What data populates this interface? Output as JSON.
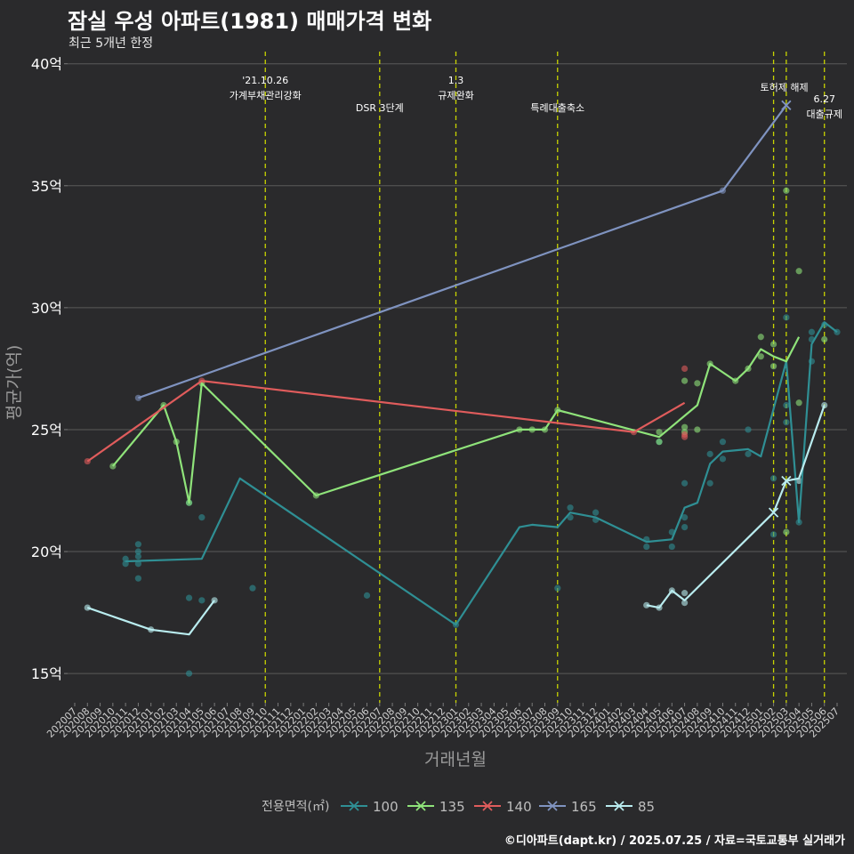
{
  "header": {
    "title": "잠실 우성 아파트(1981) 매매가격 변화",
    "subtitle": "최근 5개년 한정"
  },
  "caption": "©디아파트(dapt.kr) / 2025.07.25 / 자료=국토교통부 실거래가",
  "colors": {
    "background": "#2a2a2c",
    "grid": "#5a5a5a",
    "event_line": "#c8d400",
    "s100": "#2f8f94",
    "s135": "#8fe37a",
    "s140": "#e05c5c",
    "s165": "#7f93c0",
    "s85": "#b9ecef"
  },
  "chart_data": {
    "type": "line",
    "title": "잠실 우성 아파트(1981) 매매가격 변화",
    "subtitle": "최근 5개년 한정",
    "xlabel": "거래년월",
    "ylabel": "평균가(억)",
    "ylim": [
      13.8,
      40.5
    ],
    "yticks": [
      15,
      20,
      25,
      30,
      35,
      40
    ],
    "ytick_labels": [
      "15억",
      "20억",
      "25억",
      "30억",
      "35억",
      "40억"
    ],
    "grid": true,
    "categories": [
      "202007",
      "202008",
      "202009",
      "202010",
      "202011",
      "202012",
      "202101",
      "202102",
      "202103",
      "202104",
      "202105",
      "202106",
      "202107",
      "202108",
      "202109",
      "202110",
      "202111",
      "202112",
      "202201",
      "202202",
      "202203",
      "202204",
      "202205",
      "202206",
      "202207",
      "202208",
      "202209",
      "202210",
      "202211",
      "202212",
      "202301",
      "202302",
      "202303",
      "202304",
      "202305",
      "202306",
      "202307",
      "202308",
      "202309",
      "202310",
      "202311",
      "202312",
      "202401",
      "202402",
      "202403",
      "202404",
      "202405",
      "202406",
      "202407",
      "202408",
      "202409",
      "202410",
      "202411",
      "202412",
      "202501",
      "202502",
      "202503",
      "202504",
      "202505",
      "202506",
      "202507"
    ],
    "events": [
      {
        "month": "202110",
        "line1": "'21.10.26",
        "line2": "가계부채관리강화"
      },
      {
        "month": "202207",
        "line1": "",
        "line2": "DSR 3단계"
      },
      {
        "month": "202301",
        "line1": "1.3",
        "line2": "규제완화"
      },
      {
        "month": "202309",
        "line1": "",
        "line2": "특례대출축소"
      },
      {
        "month": "202502",
        "line1": "",
        "line2": "토허제 해제"
      },
      {
        "month": "202503",
        "line1": "",
        "line2": ""
      },
      {
        "month": "202506",
        "line1": "6.27",
        "line2": "대출규제"
      }
    ],
    "legend": {
      "title": "전용면적(㎡)",
      "position": "bottom",
      "entries": [
        "100",
        "135",
        "140",
        "165",
        "85"
      ]
    },
    "series": [
      {
        "name": "100",
        "color": "#2f8f94",
        "line": [
          [
            "202011",
            19.6
          ],
          [
            "202105",
            19.7
          ],
          [
            "202108",
            23.0
          ],
          [
            "202301",
            17.0
          ],
          [
            "202306",
            21.0
          ],
          [
            "202307",
            21.1
          ],
          [
            "202309",
            21.0
          ],
          [
            "202310",
            21.6
          ],
          [
            "202312",
            21.4
          ],
          [
            "202404",
            20.4
          ],
          [
            "202406",
            20.5
          ],
          [
            "202407",
            21.8
          ],
          [
            "202408",
            22.0
          ],
          [
            "202409",
            23.6
          ],
          [
            "202410",
            24.1
          ],
          [
            "202412",
            24.2
          ],
          [
            "202501",
            23.9
          ],
          [
            "202503",
            27.8
          ],
          [
            "202504",
            21.2
          ],
          [
            "202505",
            28.5
          ],
          [
            "202506",
            29.4
          ],
          [
            "202507",
            29.0
          ]
        ],
        "points": [
          [
            "202011",
            19.7
          ],
          [
            "202011",
            19.5
          ],
          [
            "202012",
            20.3
          ],
          [
            "202012",
            20.0
          ],
          [
            "202012",
            19.8
          ],
          [
            "202012",
            19.5
          ],
          [
            "202012",
            18.9
          ],
          [
            "202104",
            22.0
          ],
          [
            "202104",
            18.1
          ],
          [
            "202104",
            15.0
          ],
          [
            "202105",
            21.4
          ],
          [
            "202105",
            18.0
          ],
          [
            "202109",
            18.5
          ],
          [
            "202206",
            18.2
          ],
          [
            "202301",
            17.0
          ],
          [
            "202309",
            18.5
          ],
          [
            "202310",
            21.8
          ],
          [
            "202310",
            21.4
          ],
          [
            "202312",
            21.6
          ],
          [
            "202312",
            21.3
          ],
          [
            "202404",
            20.5
          ],
          [
            "202404",
            20.2
          ],
          [
            "202405",
            24.5
          ],
          [
            "202406",
            20.8
          ],
          [
            "202406",
            20.2
          ],
          [
            "202407",
            22.8
          ],
          [
            "202407",
            21.4
          ],
          [
            "202407",
            21.0
          ],
          [
            "202409",
            24.0
          ],
          [
            "202409",
            22.8
          ],
          [
            "202410",
            24.5
          ],
          [
            "202410",
            23.8
          ],
          [
            "202412",
            25.0
          ],
          [
            "202412",
            24.0
          ],
          [
            "202502",
            23.0
          ],
          [
            "202502",
            20.7
          ],
          [
            "202503",
            29.6
          ],
          [
            "202503",
            26.0
          ],
          [
            "202503",
            25.3
          ],
          [
            "202504",
            21.2
          ],
          [
            "202505",
            29.0
          ],
          [
            "202505",
            28.7
          ],
          [
            "202505",
            27.8
          ],
          [
            "202506",
            29.3
          ],
          [
            "202507",
            29.0
          ]
        ]
      },
      {
        "name": "135",
        "color": "#8fe37a",
        "line": [
          [
            "202010",
            23.5
          ],
          [
            "202102",
            26.0
          ],
          [
            "202103",
            24.5
          ],
          [
            "202104",
            22.0
          ],
          [
            "202105",
            26.9
          ],
          [
            "202202",
            22.3
          ],
          [
            "202306",
            25.0
          ],
          [
            "202307",
            25.0
          ],
          [
            "202308",
            25.0
          ],
          [
            "202309",
            25.8
          ],
          [
            "202405",
            24.7
          ],
          [
            "202408",
            26.0
          ],
          [
            "202409",
            27.7
          ],
          [
            "202411",
            27.0
          ],
          [
            "202412",
            27.5
          ],
          [
            "202501",
            28.3
          ],
          [
            "202502",
            28.0
          ],
          [
            "202503",
            27.8
          ],
          [
            "202504",
            28.8
          ]
        ],
        "points": [
          [
            "202010",
            23.5
          ],
          [
            "202102",
            26.0
          ],
          [
            "202103",
            24.5
          ],
          [
            "202104",
            22.0
          ],
          [
            "202105",
            26.9
          ],
          [
            "202202",
            22.3
          ],
          [
            "202306",
            25.0
          ],
          [
            "202307",
            25.0
          ],
          [
            "202308",
            25.0
          ],
          [
            "202309",
            25.8
          ],
          [
            "202405",
            24.9
          ],
          [
            "202405",
            24.5
          ],
          [
            "202407",
            27.0
          ],
          [
            "202407",
            25.1
          ],
          [
            "202407",
            24.9
          ],
          [
            "202408",
            26.9
          ],
          [
            "202408",
            25.0
          ],
          [
            "202409",
            27.7
          ],
          [
            "202411",
            27.0
          ],
          [
            "202412",
            27.5
          ],
          [
            "202501",
            28.8
          ],
          [
            "202501",
            28.0
          ],
          [
            "202502",
            28.5
          ],
          [
            "202502",
            27.6
          ],
          [
            "202503",
            34.8
          ],
          [
            "202503",
            20.8
          ],
          [
            "202504",
            31.5
          ],
          [
            "202504",
            26.1
          ],
          [
            "202506",
            28.7
          ]
        ]
      },
      {
        "name": "140",
        "color": "#e05c5c",
        "line": [
          [
            "202008",
            23.7
          ],
          [
            "202105",
            27.0
          ],
          [
            "202403",
            24.9
          ],
          [
            "202407",
            26.1
          ]
        ],
        "points": [
          [
            "202008",
            23.7
          ],
          [
            "202105",
            27.0
          ],
          [
            "202403",
            24.9
          ],
          [
            "202407",
            27.5
          ],
          [
            "202407",
            24.8
          ],
          [
            "202407",
            24.7
          ]
        ]
      },
      {
        "name": "165",
        "color": "#7f93c0",
        "line": [
          [
            "202012",
            26.3
          ],
          [
            "202410",
            34.8
          ],
          [
            "202503",
            38.3
          ]
        ],
        "points": [
          [
            "202012",
            26.3
          ],
          [
            "202410",
            34.8
          ]
        ],
        "x_markers": [
          [
            "202503",
            38.3
          ]
        ]
      },
      {
        "name": "85",
        "color": "#b9ecef",
        "line": [
          [
            "202008",
            17.7
          ],
          [
            "202101",
            16.8
          ],
          [
            "202104",
            16.6
          ],
          [
            "202106",
            18.0
          ]
        ],
        "points": [
          [
            "202008",
            17.7
          ],
          [
            "202101",
            16.8
          ],
          [
            "202106",
            18.0
          ],
          [
            "202404",
            17.8
          ],
          [
            "202405",
            17.7
          ],
          [
            "202406",
            18.4
          ],
          [
            "202407",
            18.3
          ],
          [
            "202407",
            17.9
          ],
          [
            "202504",
            22.9
          ],
          [
            "202506",
            26.0
          ]
        ],
        "line2": [
          [
            "202404",
            17.8
          ],
          [
            "202405",
            17.7
          ],
          [
            "202406",
            18.4
          ],
          [
            "202407",
            18.0
          ],
          [
            "202502",
            21.6
          ],
          [
            "202503",
            22.9
          ],
          [
            "202504",
            23.0
          ],
          [
            "202506",
            26.0
          ]
        ],
        "x_markers": [
          [
            "202502",
            21.6
          ],
          [
            "202503",
            22.9
          ]
        ]
      }
    ]
  }
}
